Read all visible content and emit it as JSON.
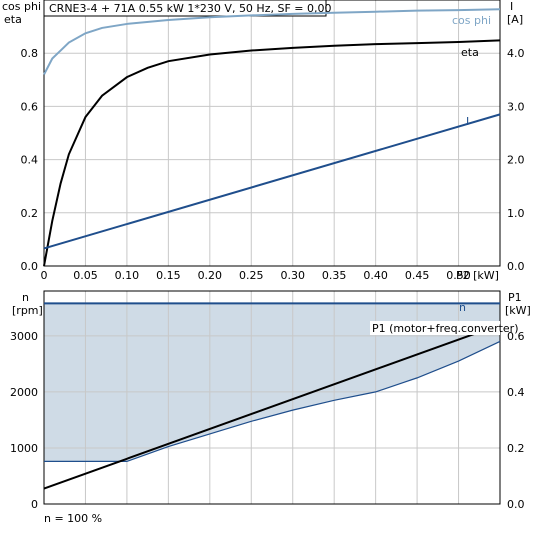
{
  "colors": {
    "cosphi": "#7fa6c6",
    "eta": "#000000",
    "current": "#1f4e8c",
    "speed": "#1f4e8c",
    "p1": "#000000",
    "p1_band_fill": "#cfdbe6",
    "grid": "#c8c8c8"
  },
  "chart_data": [
    {
      "type": "line",
      "title": "CRNE3-4 + 71A   0.55 kW   1*230 V, 50 Hz, SF = 0,00",
      "x_axis": {
        "label": "P2 [kW]",
        "range": [
          0,
          0.55
        ],
        "ticks": [
          "0",
          "0.05",
          "0.10",
          "0.15",
          "0.20",
          "0.25",
          "0.30",
          "0.35",
          "0.40",
          "0.45",
          "0.50"
        ],
        "tick_values": [
          0,
          0.05,
          0.1,
          0.15,
          0.2,
          0.25,
          0.3,
          0.35,
          0.4,
          0.45,
          0.5
        ]
      },
      "y_left": {
        "label_line1": "cos phi",
        "label_line2": "eta",
        "range": [
          0,
          1.0
        ],
        "ticks": [
          "0.0",
          "0.2",
          "0.4",
          "0.6",
          "0.8"
        ],
        "tick_values": [
          0,
          0.2,
          0.4,
          0.6,
          0.8
        ]
      },
      "y_right": {
        "label_line1": "I",
        "label_line2": "[A]",
        "range": [
          0,
          5.0
        ],
        "ticks": [
          "0.0",
          "1.0",
          "2.0",
          "3.0",
          "4.0"
        ],
        "tick_values": [
          0,
          1.0,
          2.0,
          3.0,
          4.0
        ]
      },
      "grid": true,
      "series": [
        {
          "name": "cos phi",
          "axis": "left",
          "x": [
            0,
            0.01,
            0.02,
            0.03,
            0.05,
            0.07,
            0.1,
            0.15,
            0.2,
            0.25,
            0.3,
            0.35,
            0.4,
            0.45,
            0.5,
            0.55
          ],
          "y": [
            0.72,
            0.78,
            0.81,
            0.84,
            0.875,
            0.895,
            0.91,
            0.925,
            0.935,
            0.942,
            0.948,
            0.952,
            0.956,
            0.96,
            0.962,
            0.965
          ]
        },
        {
          "name": "eta",
          "axis": "left",
          "x": [
            0,
            0.01,
            0.02,
            0.03,
            0.05,
            0.07,
            0.1,
            0.125,
            0.15,
            0.2,
            0.25,
            0.3,
            0.35,
            0.4,
            0.45,
            0.5,
            0.55
          ],
          "y": [
            0.0,
            0.17,
            0.31,
            0.42,
            0.56,
            0.64,
            0.71,
            0.745,
            0.77,
            0.795,
            0.81,
            0.82,
            0.828,
            0.834,
            0.838,
            0.842,
            0.848
          ]
        },
        {
          "name": "I",
          "axis": "right",
          "x": [
            0,
            0.55
          ],
          "y": [
            0.33,
            2.85
          ]
        }
      ]
    },
    {
      "type": "line",
      "x_axis": {
        "range": [
          0,
          0.55
        ]
      },
      "y_left": {
        "label_line1": "n",
        "label_line2": "[rpm]",
        "range": [
          0,
          3800
        ],
        "ticks": [
          "0",
          "1000",
          "2000",
          "3000"
        ],
        "tick_values": [
          0,
          1000,
          2000,
          3000
        ]
      },
      "y_right": {
        "label_line1": "P1",
        "label_line2": "[kW]",
        "range": [
          0,
          0.76
        ],
        "ticks": [
          "0.0",
          "0.2",
          "0.4",
          "0.6"
        ],
        "tick_values": [
          0,
          0.2,
          0.4,
          0.6
        ]
      },
      "grid": true,
      "footnote": "n = 100 %",
      "series": [
        {
          "name": "n",
          "axis": "left",
          "x": [
            0,
            0.55
          ],
          "y": [
            3580,
            3580
          ]
        },
        {
          "name": "P1 (motor+freq.converter)",
          "axis": "right",
          "x": [
            0,
            0.55
          ],
          "y": [
            0.055,
            0.64
          ]
        },
        {
          "name": "",
          "axis": "right",
          "x": [
            0,
            0.1,
            0.15,
            0.2,
            0.25,
            0.3,
            0.35,
            0.4,
            0.45,
            0.5,
            0.55
          ],
          "y": [
            0.152,
            0.152,
            0.205,
            0.25,
            0.295,
            0.335,
            0.37,
            0.4,
            0.45,
            0.51,
            0.58
          ]
        }
      ]
    }
  ]
}
